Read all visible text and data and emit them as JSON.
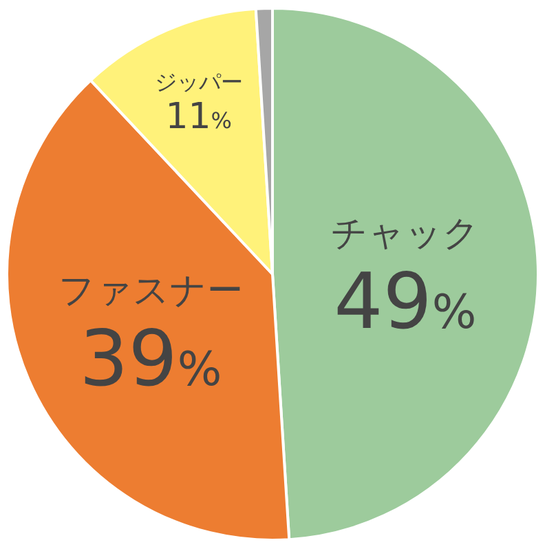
{
  "chart_data": {
    "type": "pie",
    "categories": [
      "チャック",
      "ファスナー",
      "ジッパー",
      null
    ],
    "values": [
      49,
      39,
      11,
      1
    ],
    "colors": [
      "#9dcb9c",
      "#ed7d31",
      "#fff27a",
      "#a6a6a6"
    ],
    "value_labels": [
      "49%",
      "39%",
      "11%",
      null
    ]
  }
}
